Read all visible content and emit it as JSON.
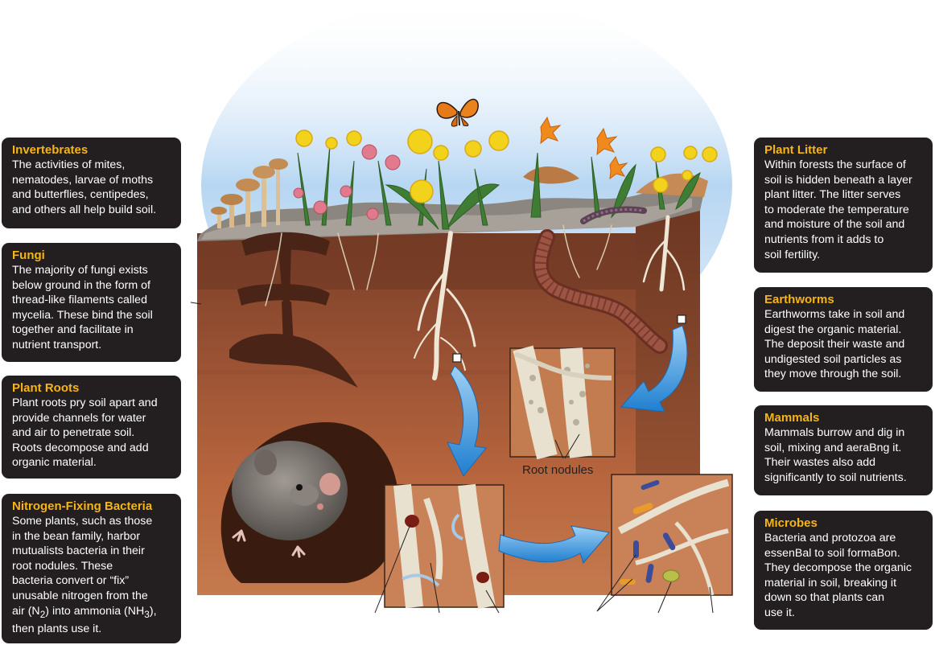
{
  "cards": {
    "invertebrates": {
      "title": "Invertebrates",
      "lines": [
        "The activities of mites,",
        "nematodes, larvae of moths",
        "and butterflies, centipedes,",
        "and others all help build soil."
      ]
    },
    "fungi": {
      "title": "Fungi",
      "lines": [
        "The majority of fungi exists",
        "below ground in the form of",
        "thread-like filaments called",
        "mycelia. These bind the soil",
        "together and facilitate in",
        "nutrient transport."
      ]
    },
    "plant_roots": {
      "title": "Plant Roots",
      "lines": [
        "Plant roots pry soil apart and",
        "provide channels for water",
        "and air to penetrate soil.",
        "Roots decompose and add",
        "organic material."
      ]
    },
    "nitrogen_fixing": {
      "title": "Nitrogen-Fixing Bacteria",
      "lines": [
        "Some plants, such as those",
        "in the bean family, harbor",
        "mutualists bacteria in their",
        "root nodules. These",
        "bacteria convert or “fix”",
        "unusable nitrogen from the"
      ],
      "line7_a": "air (N",
      "line7_sub1": "2",
      "line7_b": ") into ammonia (NH",
      "line7_sub2": "3",
      "line7_c": "),",
      "line8": "then plants use it."
    },
    "plant_litter": {
      "title": "Plant Litter",
      "lines": [
        "Within forests the surface of",
        "soil is hidden beneath a layer",
        "plant litter. The litter serves",
        "to moderate the temperature",
        "and moisture of the soil and",
        "nutrients from it adds to",
        "soil fertility."
      ]
    },
    "earthworms": {
      "title": "Earthworms",
      "lines": [
        "Earthworms take in soil and",
        "digest the organic material.",
        "The deposit their waste and",
        "undigested soil particles as",
        "they move through the soil."
      ]
    },
    "mammals": {
      "title": "Mammals",
      "lines": [
        "Mammals burrow and dig in",
        "soil, mixing and aeraBng it.",
        "Their wastes also add",
        "significantly to soil nutrients."
      ]
    },
    "microbes": {
      "title": "Microbes",
      "lines": [
        "Bacteria and protozoa are",
        "essenBal to soil formaBon.",
        "They decompose the organic",
        "material in soil, breaking it",
        "down so that plants can",
        "use it."
      ]
    }
  },
  "labels": {
    "root_nodules": "Root nodules"
  },
  "colors": {
    "card_bg": "#231f20",
    "card_title": "#f6b417",
    "card_text": "#ffffff",
    "sky": "#9cc8ec",
    "topsoil": "#8a4a2e",
    "subsoil": "#b8653c",
    "arrow": "#2d8fd8"
  }
}
